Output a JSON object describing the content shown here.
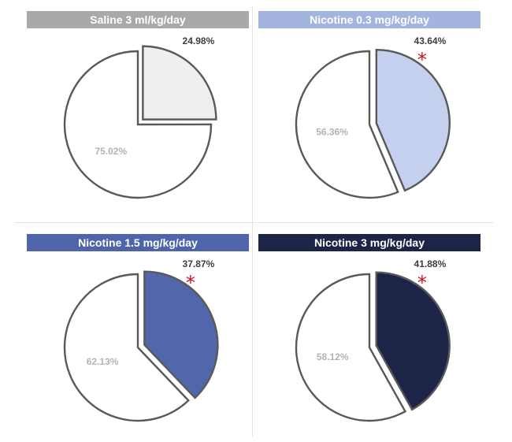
{
  "chart_data": [
    {
      "type": "pie",
      "title": "Saline 3 ml/kg/day",
      "title_bg": "#a9a9a9",
      "slices": [
        {
          "value": 24.98,
          "label": "24.98%",
          "color": "#efefef",
          "exploded": true
        },
        {
          "value": 75.02,
          "label": "75.02%",
          "color": "#ffffff",
          "exploded": false
        }
      ],
      "significant": false
    },
    {
      "type": "pie",
      "title": "Nicotine 0.3 mg/kg/day",
      "title_bg": "#a3b4df",
      "slices": [
        {
          "value": 43.64,
          "label": "43.64%",
          "color": "#c5cfee",
          "exploded": true
        },
        {
          "value": 56.36,
          "label": "56.36%",
          "color": "#ffffff",
          "exploded": false
        }
      ],
      "significant": true
    },
    {
      "type": "pie",
      "title": "Nicotine 1.5 mg/kg/day",
      "title_bg": "#4f65ab",
      "slices": [
        {
          "value": 37.87,
          "label": "37.87%",
          "color": "#5266ac",
          "exploded": true
        },
        {
          "value": 62.13,
          "label": "62.13%",
          "color": "#ffffff",
          "exploded": false
        }
      ],
      "significant": true
    },
    {
      "type": "pie",
      "title": "Nicotine 3 mg/kg/day",
      "title_bg": "#1c2447",
      "slices": [
        {
          "value": 41.88,
          "label": "41.88%",
          "color": "#1c2447",
          "exploded": true
        },
        {
          "value": 58.12,
          "label": "58.12%",
          "color": "#ffffff",
          "exploded": false
        }
      ],
      "significant": true
    }
  ],
  "significance_marker": "*",
  "outline_color": "#595959",
  "significance_color": "#c0141f"
}
